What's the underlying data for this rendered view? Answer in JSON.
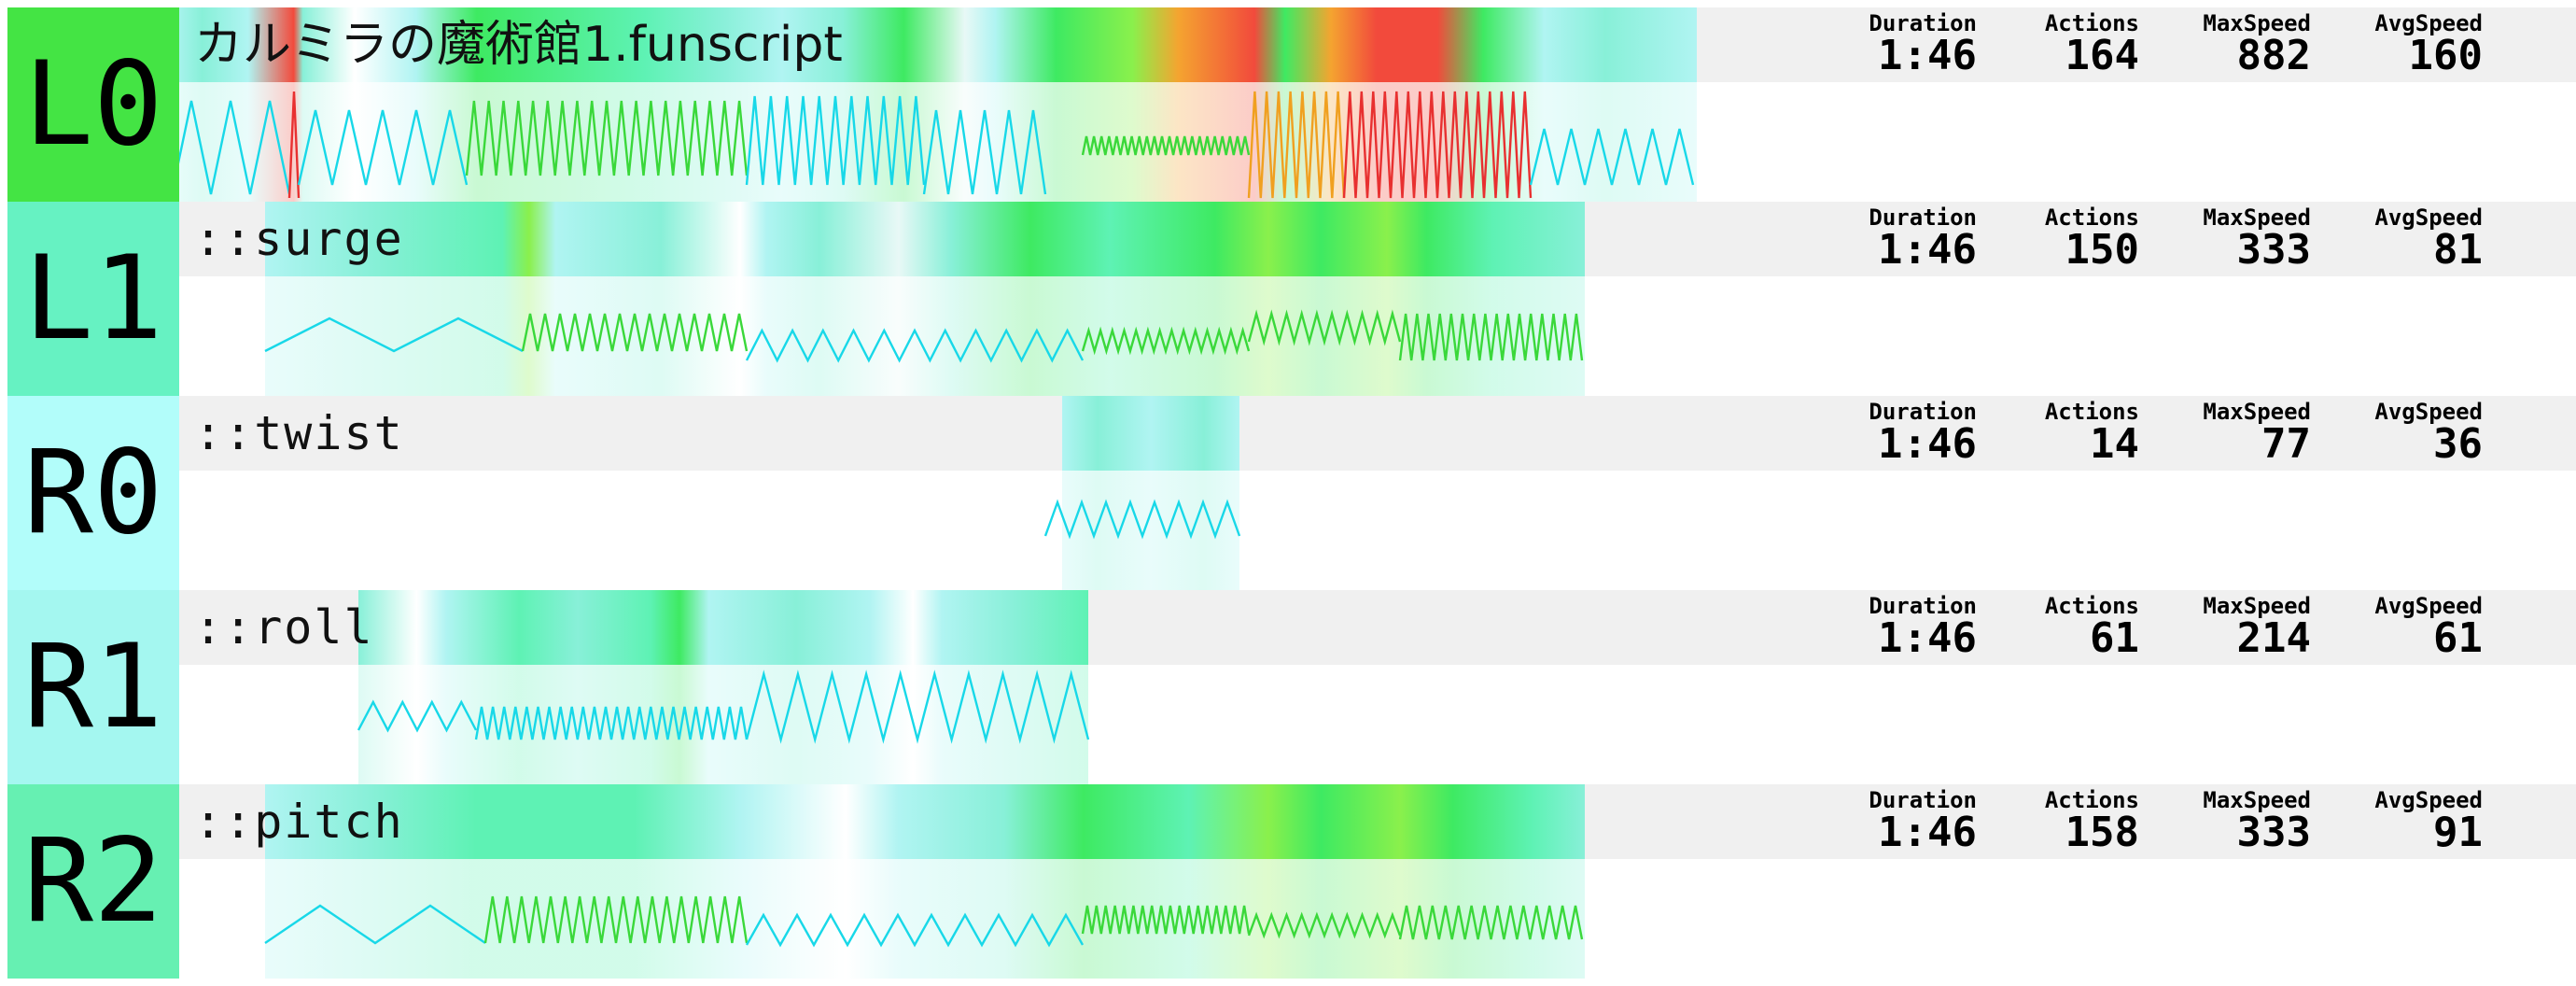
{
  "colors": {
    "title_bar_bg": "#f0f0f0",
    "axis_box": [
      "#44e444",
      "#66f2c2",
      "#b2fdfa",
      "#a4f7f0",
      "#66f0b2"
    ],
    "heat_palette": {
      "cyan": "#b0f4f2",
      "teal": "#88f0d8",
      "seafoam": "#5ef2b4",
      "green": "#3eea62",
      "lime": "#8af04c",
      "orange": "#f4a430",
      "red": "#f24a3c",
      "pale": "#e8f8f6",
      "white": "#ffffff"
    }
  },
  "stat_labels": {
    "duration": "Duration",
    "actions": "Actions",
    "max_speed": "MaxSpeed",
    "avg_speed": "AvgSpeed"
  },
  "tracks": [
    {
      "axis": "L0",
      "title": "カルミラの魔術館1.funscript",
      "duration": "1:46",
      "actions": "164",
      "max_speed": "882",
      "avg_speed": "160"
    },
    {
      "axis": "L1",
      "title": "::surge",
      "duration": "1:46",
      "actions": "150",
      "max_speed": "333",
      "avg_speed": "81"
    },
    {
      "axis": "R0",
      "title": "::twist",
      "duration": "1:46",
      "actions": "14",
      "max_speed": "77",
      "avg_speed": "36"
    },
    {
      "axis": "R1",
      "title": "::roll",
      "duration": "1:46",
      "actions": "61",
      "max_speed": "214",
      "avg_speed": "61"
    },
    {
      "axis": "R2",
      "title": "::pitch",
      "duration": "1:46",
      "actions": "158",
      "max_speed": "333",
      "avg_speed": "91"
    }
  ]
}
